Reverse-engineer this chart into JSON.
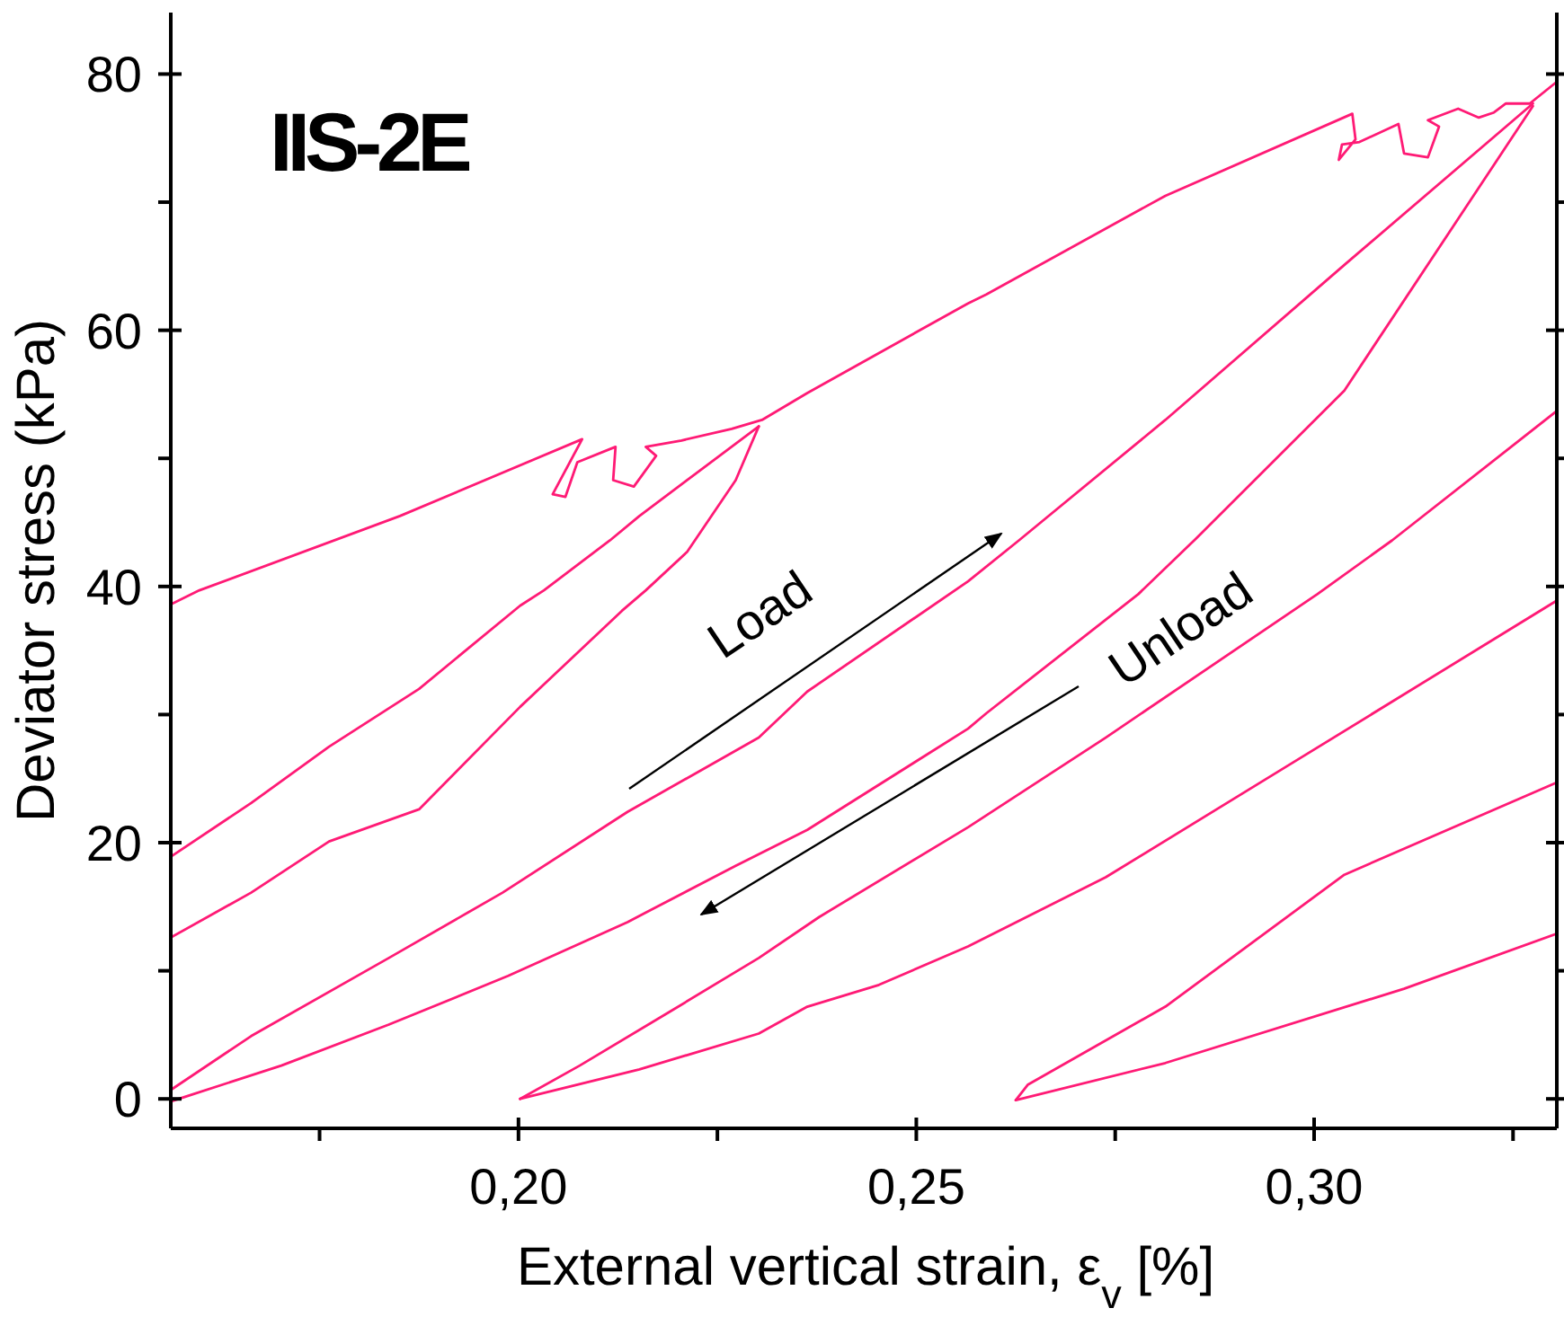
{
  "chart_data": {
    "type": "line",
    "xlabel": "External vertical strain, ε$_{v}$ [%]",
    "ylabel": "Deviator stress (kPa)",
    "annotations": [
      "IIS-2E",
      "Load",
      "Unload"
    ],
    "xlim": [
      0.1563,
      0.3305
    ],
    "ylim": [
      -2.3,
      84.8
    ],
    "xticks": [
      {
        "value": 0.175,
        "label": null
      },
      {
        "value": 0.2,
        "label": "0,20"
      },
      {
        "value": 0.225,
        "label": null
      },
      {
        "value": 0.25,
        "label": "0,25"
      },
      {
        "value": 0.275,
        "label": null
      },
      {
        "value": 0.3,
        "label": "0,30"
      },
      {
        "value": 0.325,
        "label": null
      }
    ],
    "yticks": [
      0,
      {
        "value": 10,
        "label": null
      },
      20,
      {
        "value": 30,
        "label": null
      },
      40,
      {
        "value": 50,
        "label": null
      },
      60,
      {
        "value": 70,
        "label": null
      },
      80
    ],
    "marker": "none",
    "line_style": "solid",
    "series": [
      {
        "color": "#ff1a75",
        "x": [
          0.1563,
          0.1599,
          0.1851,
          0.208,
          0.2043,
          0.2059,
          0.2074,
          0.2122,
          0.2119,
          0.2145,
          0.2173,
          0.216,
          0.2205,
          0.2268,
          0.2306,
          0.2363,
          0.2565,
          0.2588,
          0.2813,
          0.3048,
          0.3052,
          0.3031,
          0.3035,
          0.3057,
          0.3106,
          0.3113,
          0.3143,
          0.3157,
          0.3143,
          0.3181,
          0.3207,
          0.3226,
          0.3241,
          0.3271,
          0.3305
        ],
        "values": [
          38.6,
          39.7,
          45.5,
          51.5,
          47.2,
          47.0,
          49.7,
          50.9,
          48.3,
          47.8,
          50.2,
          50.9,
          51.4,
          52.3,
          53.0,
          55.1,
          62.1,
          62.8,
          70.5,
          76.9,
          74.9,
          73.3,
          74.5,
          74.7,
          76.1,
          73.8,
          73.5,
          75.9,
          76.4,
          77.3,
          76.6,
          77.0,
          77.7,
          77.7,
          79.4
        ]
      },
      {
        "color": "#ff1a75",
        "x": [
          0.1563,
          0.1664,
          0.1762,
          0.1875,
          0.2002,
          0.2032,
          0.2115,
          0.2152,
          0.2302
        ],
        "values": [
          18.9,
          23.1,
          27.5,
          32.0,
          38.5,
          39.7,
          43.6,
          45.5,
          52.5
        ]
      },
      {
        "color": "#ff1a75",
        "x": [
          0.1563,
          0.1664,
          0.1762,
          0.1875,
          0.2002,
          0.213,
          0.216,
          0.2212,
          0.2273,
          0.2302
        ],
        "values": [
          12.6,
          16.1,
          20.1,
          22.6,
          30.6,
          38.1,
          39.7,
          42.7,
          48.3,
          52.5
        ]
      },
      {
        "color": "#ff1a75",
        "x": [
          0.1563,
          0.1664,
          0.1837,
          0.198,
          0.2137,
          0.2302,
          0.2363,
          0.2565,
          0.2629,
          0.2813,
          0.3038,
          0.3275
        ],
        "values": [
          0.7,
          4.9,
          11.0,
          16.1,
          22.4,
          28.2,
          31.8,
          40.4,
          43.6,
          53.0,
          65.1,
          77.7
        ]
      },
      {
        "color": "#ff1a75",
        "x": [
          0.1563,
          0.1702,
          0.1837,
          0.1987,
          0.2137,
          0.2273,
          0.2363,
          0.2565,
          0.2588,
          0.2779,
          0.2851,
          0.3038,
          0.3275
        ],
        "values": [
          -0.2,
          2.6,
          5.8,
          9.6,
          13.8,
          18.2,
          21.0,
          28.9,
          30.1,
          39.4,
          43.7,
          55.3,
          77.5
        ]
      },
      {
        "color": "#ff1a75",
        "x": [
          0.2002,
          0.2077,
          0.219,
          0.2302,
          0.2378,
          0.2565,
          0.2738,
          0.3004,
          0.3098,
          0.3305
        ],
        "values": [
          0.0,
          2.6,
          6.8,
          11.0,
          14.2,
          21.2,
          28.2,
          39.4,
          43.6,
          53.7
        ]
      },
      {
        "color": "#ff1a75",
        "x": [
          0.2002,
          0.2152,
          0.2302,
          0.2363,
          0.2453,
          0.2565,
          0.2738,
          0.2964,
          0.3305
        ],
        "values": [
          0.0,
          2.3,
          5.1,
          7.2,
          8.9,
          11.9,
          17.3,
          25.9,
          38.9
        ]
      },
      {
        "color": "#ff1a75",
        "x": [
          0.2625,
          0.264,
          0.2813,
          0.3038,
          0.3305
        ],
        "values": [
          -0.1,
          1.1,
          7.2,
          17.5,
          24.7
        ]
      },
      {
        "color": "#ff1a75",
        "x": [
          0.2625,
          0.2813,
          0.3113,
          0.3305
        ],
        "values": [
          -0.1,
          2.8,
          8.6,
          12.9
        ]
      }
    ]
  }
}
